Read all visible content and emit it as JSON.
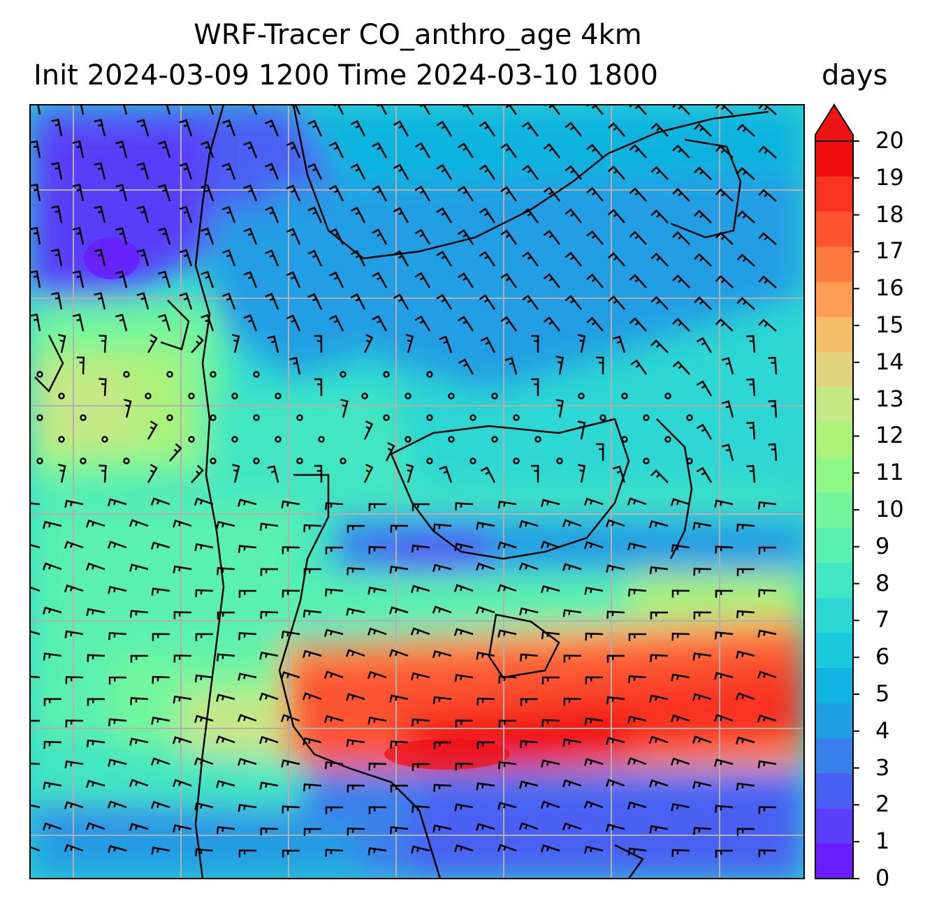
{
  "title": {
    "line1": "WRF-Tracer CO_anthro_age 4km",
    "line2": "Init 2024-03-09 1200 Time 2024-03-10 1800"
  },
  "colorbar": {
    "units": "days",
    "min": 0,
    "max": 20,
    "extend": "max",
    "tick_labels": [
      "0",
      "1",
      "2",
      "3",
      "4",
      "5",
      "6",
      "7",
      "8",
      "9",
      "10",
      "11",
      "12",
      "13",
      "14",
      "15",
      "16",
      "17",
      "18",
      "19",
      "20"
    ],
    "colors": [
      "#6a1dfd",
      "#5a3ef8",
      "#4860f3",
      "#3a80ec",
      "#209ee4",
      "#10b4df",
      "#1bc9dc",
      "#2dd7d3",
      "#43e6c2",
      "#5af1b0",
      "#72f69d",
      "#8ff887",
      "#acf278",
      "#c6e887",
      "#e0d37c",
      "#f3bc68",
      "#fd9c53",
      "#fd7a40",
      "#fc5530",
      "#f93221",
      "#f00d0d",
      "#f01515"
    ]
  },
  "map": {
    "field": "CO_anthro_age",
    "gridlines": true,
    "wind_barbs": true,
    "coastlines": true
  }
}
